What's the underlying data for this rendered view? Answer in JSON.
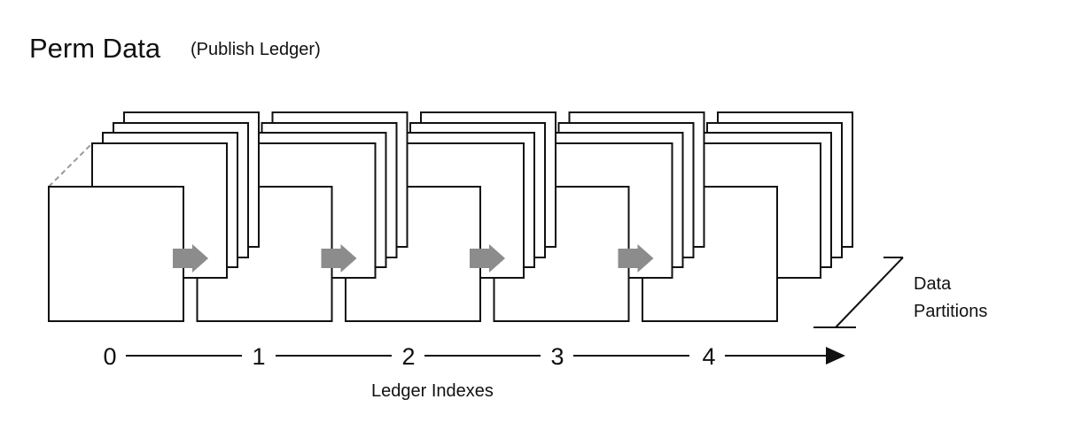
{
  "title": "Perm Data",
  "subtitle": "(Publish Ledger)",
  "axis": {
    "label": "Ledger Indexes",
    "ticks": [
      "0",
      "1",
      "2",
      "3",
      "4"
    ]
  },
  "partitions": {
    "label_line1": "Data",
    "label_line2": "Partitions"
  },
  "colors": {
    "stroke": "#111111",
    "arrow": "#8c8c8c",
    "dashed": "#9a9a9a"
  }
}
